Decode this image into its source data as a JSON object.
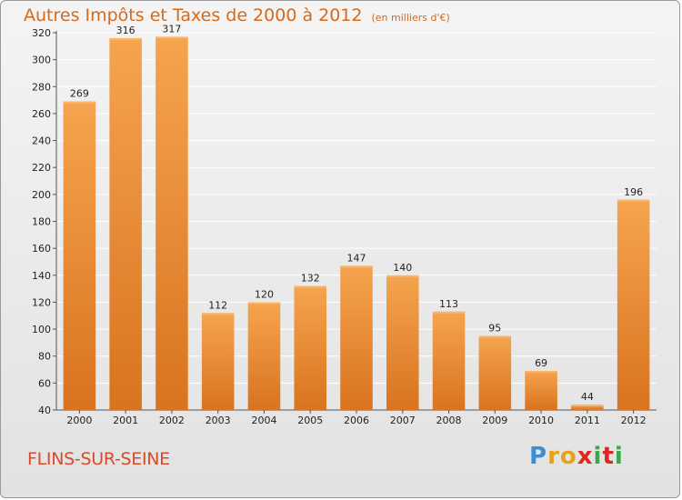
{
  "header": {
    "title": "Autres Impôts et Taxes de 2000 à 2012",
    "unit_note": "(en milliers d'€)"
  },
  "footer": {
    "place": "FLINS-SUR-SEINE",
    "logo_text": "Proxiti"
  },
  "colors": {
    "bar_top": "#f6a44e",
    "bar_bottom": "#d9731f",
    "title": "#d56a1c",
    "place": "#d84a2a",
    "grid": "#ffffff"
  },
  "chart_data": {
    "type": "bar",
    "title": "Autres Impôts et Taxes de 2000 à 2012",
    "subtitle": "(en milliers d'€)",
    "xlabel": "",
    "ylabel": "",
    "categories": [
      "2000",
      "2001",
      "2002",
      "2003",
      "2004",
      "2005",
      "2006",
      "2007",
      "2008",
      "2009",
      "2010",
      "2011",
      "2012"
    ],
    "values": [
      269,
      316,
      317,
      112,
      120,
      132,
      147,
      140,
      113,
      95,
      69,
      44,
      196
    ],
    "ylim": [
      40,
      320
    ],
    "yticks": [
      40,
      60,
      80,
      100,
      120,
      140,
      160,
      180,
      200,
      220,
      240,
      260,
      280,
      300,
      320
    ],
    "grid": true,
    "data_labels": true,
    "legend": "none"
  }
}
